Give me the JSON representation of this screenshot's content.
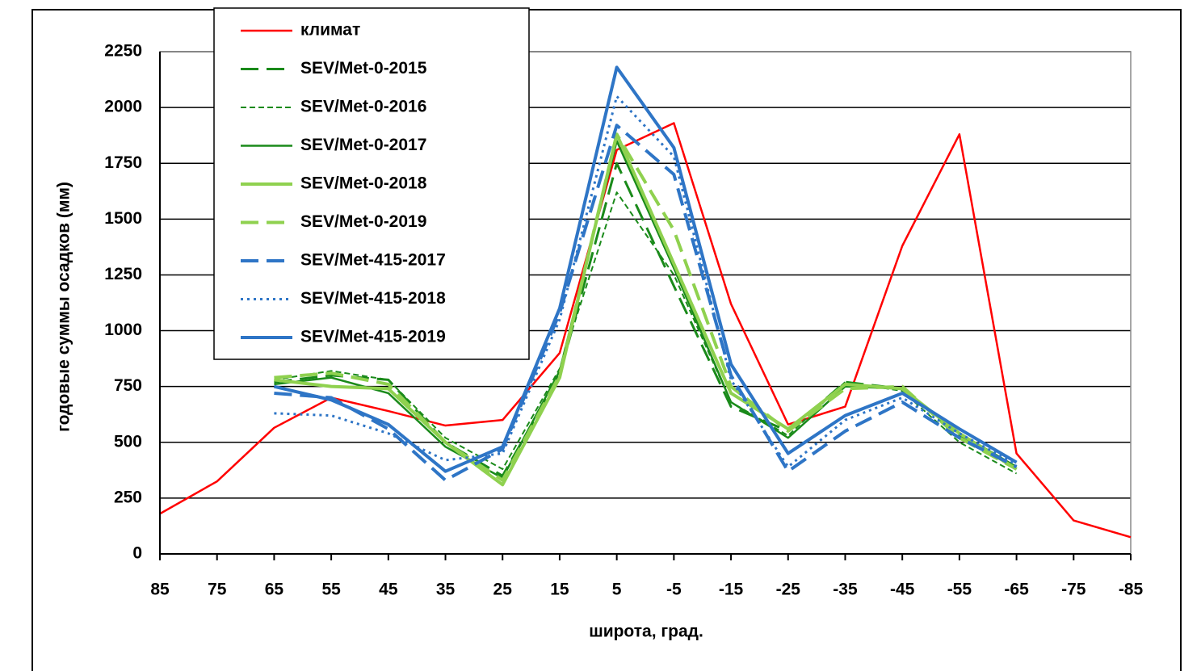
{
  "chart_data": {
    "type": "line",
    "y_label": "годовые суммы осадков (мм)",
    "x_label": "широта, град.",
    "x": [
      85,
      75,
      65,
      55,
      45,
      35,
      25,
      15,
      5,
      -5,
      -15,
      -25,
      -35,
      -45,
      -55,
      -65,
      -75,
      -85
    ],
    "xlim": [
      85,
      -85
    ],
    "xticks": [
      85,
      75,
      65,
      55,
      45,
      35,
      25,
      15,
      5,
      -5,
      -15,
      -25,
      -35,
      -45,
      -55,
      -65,
      -75,
      -85
    ],
    "ylim": [
      0,
      2250
    ],
    "yticks": [
      0,
      250,
      500,
      750,
      1000,
      1250,
      1500,
      1750,
      2000,
      2250
    ],
    "grid": true,
    "legend": "upper left",
    "series": [
      {
        "name": "климат",
        "color": "#ff0000",
        "style": "solid",
        "values": [
          180,
          325,
          565,
          700,
          640,
          575,
          600,
          900,
          1810,
          1930,
          1120,
          580,
          660,
          1380,
          1880,
          450,
          150,
          75
        ]
      },
      {
        "name": "SEV/Met-0-2015",
        "color": "#1a8a1a",
        "style": "dash",
        "values": [
          null,
          null,
          770,
          800,
          780,
          500,
          350,
          800,
          1750,
          1200,
          660,
          550,
          770,
          740,
          530,
          380,
          null,
          null
        ]
      },
      {
        "name": "SEV/Met-0-2016",
        "color": "#1a8a1a",
        "style": "shortdash",
        "values": [
          null,
          null,
          780,
          820,
          780,
          520,
          380,
          830,
          1620,
          1250,
          680,
          530,
          770,
          730,
          500,
          360,
          null,
          null
        ]
      },
      {
        "name": "SEV/Met-0-2017",
        "color": "#1a8a1a",
        "style": "solid",
        "values": [
          null,
          null,
          760,
          790,
          720,
          480,
          340,
          820,
          1850,
          1280,
          680,
          520,
          750,
          740,
          540,
          390,
          null,
          null
        ]
      },
      {
        "name": "SEV/Met-0-2018",
        "color": "#8fd14f",
        "style": "solid-bold",
        "values": [
          null,
          null,
          780,
          750,
          740,
          500,
          310,
          790,
          1880,
          1300,
          720,
          560,
          760,
          740,
          540,
          380,
          null,
          null
        ]
      },
      {
        "name": "SEV/Met-0-2019",
        "color": "#8fd14f",
        "style": "dash-bold",
        "values": [
          null,
          null,
          790,
          810,
          760,
          500,
          330,
          800,
          1880,
          1450,
          750,
          550,
          740,
          750,
          520,
          380,
          null,
          null
        ]
      },
      {
        "name": "SEV/Met-415-2017",
        "color": "#2e75c6",
        "style": "dash-bold",
        "values": [
          null,
          null,
          720,
          700,
          560,
          330,
          470,
          1080,
          1920,
          1700,
          800,
          370,
          550,
          680,
          520,
          390,
          null,
          null
        ]
      },
      {
        "name": "SEV/Met-415-2018",
        "color": "#2e75c6",
        "style": "dot",
        "values": [
          null,
          null,
          630,
          620,
          540,
          420,
          450,
          1050,
          2050,
          1780,
          780,
          390,
          600,
          700,
          540,
          400,
          null,
          null
        ]
      },
      {
        "name": "SEV/Met-415-2019",
        "color": "#2e75c6",
        "style": "solid-bold",
        "values": [
          null,
          null,
          750,
          690,
          580,
          370,
          480,
          1100,
          2180,
          1820,
          850,
          450,
          620,
          720,
          560,
          410,
          null,
          null
        ]
      }
    ]
  }
}
